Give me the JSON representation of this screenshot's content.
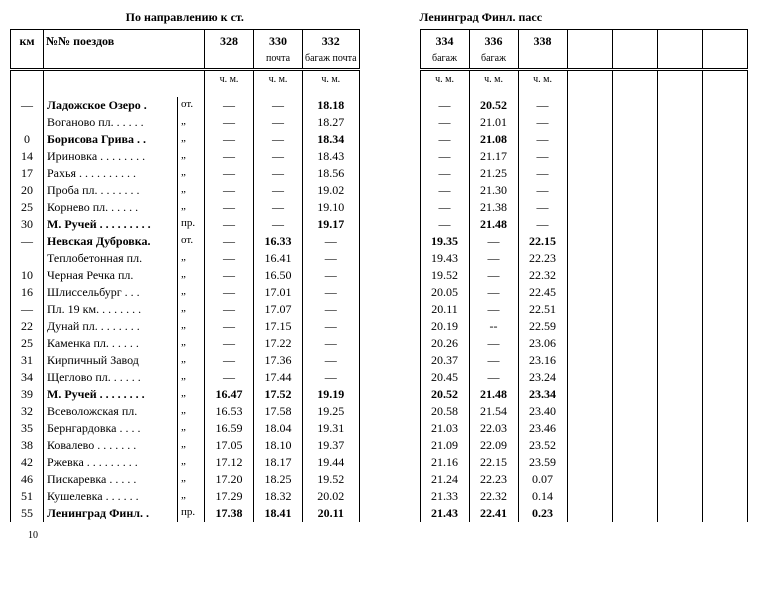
{
  "page_number": "10",
  "left": {
    "title": "По направлению к ст.",
    "columns": {
      "km": "км",
      "trains": "№№ поездов",
      "c1_num": "328",
      "c2_num": "330",
      "c2_sub": "почта",
      "c3_num": "332",
      "c3_sub": "багаж почта",
      "chm": "ч. м."
    }
  },
  "right": {
    "title": "Ленинград Финл. пасс",
    "columns": {
      "c4_num": "334",
      "c4_sub": "багаж",
      "c5_num": "336",
      "c5_sub": "багаж",
      "c6_num": "338",
      "chm": "ч. м."
    }
  },
  "rows": [
    {
      "km": "—",
      "station": "Ладожское Озеро .",
      "mark": "от.",
      "c1": "—",
      "c2": "—",
      "c3": "18.18",
      "c4": "—",
      "c5": "20.52",
      "c6": "—",
      "bold_station": true,
      "bold_c3": true,
      "bold_c5": true
    },
    {
      "km": "",
      "station": "Воганово пл. . . . . .",
      "mark": "„",
      "c1": "—",
      "c2": "—",
      "c3": "18.27",
      "c4": "—",
      "c5": "21.01",
      "c6": "—"
    },
    {
      "km": "0",
      "station": "Борисова Грива . .",
      "mark": "„",
      "c1": "—",
      "c2": "—",
      "c3": "18.34",
      "c4": "—",
      "c5": "21.08",
      "c6": "—",
      "bold_station": true,
      "bold_c3": true,
      "bold_c5": true
    },
    {
      "km": "14",
      "station": "Ириновка . . . . . . . .",
      "mark": "„",
      "c1": "—",
      "c2": "—",
      "c3": "18.43",
      "c4": "—",
      "c5": "21.17",
      "c6": "—"
    },
    {
      "km": "17",
      "station": "Рахья . . . . . . . . . .",
      "mark": "„",
      "c1": "—",
      "c2": "—",
      "c3": "18.56",
      "c4": "—",
      "c5": "21.25",
      "c6": "—"
    },
    {
      "km": "20",
      "station": "Проба пл. . . . . . . .",
      "mark": "„",
      "c1": "—",
      "c2": "—",
      "c3": "19.02",
      "c4": "—",
      "c5": "21.30",
      "c6": "—"
    },
    {
      "km": "25",
      "station": "Корнево пл. . . . . .",
      "mark": "„",
      "c1": "—",
      "c2": "—",
      "c3": "19.10",
      "c4": "—",
      "c5": "21.38",
      "c6": "—"
    },
    {
      "km": "30",
      "station": "М. Ручей . . . . . . . . .",
      "mark": "пр.",
      "c1": "—",
      "c2": "—",
      "c3": "19.17",
      "c4": "—",
      "c5": "21.48",
      "c6": "—",
      "bold_station": true,
      "bold_c3": true,
      "bold_c5": true
    },
    {
      "km": "—",
      "station": "Невская Дубровка.",
      "mark": "от.",
      "c1": "—",
      "c2": "16.33",
      "c3": "—",
      "c4": "19.35",
      "c5": "—",
      "c6": "22.15",
      "bold_station": true,
      "bold_c2": true,
      "bold_c4": true,
      "bold_c6": true
    },
    {
      "km": "",
      "station": "Теплобетонная пл.",
      "mark": "„",
      "c1": "—",
      "c2": "16.41",
      "c3": "—",
      "c4": "19.43",
      "c5": "—",
      "c6": "22.23"
    },
    {
      "km": "10",
      "station": "Черная Речка пл.",
      "mark": "„",
      "c1": "—",
      "c2": "16.50",
      "c3": "—",
      "c4": "19.52",
      "c5": "—",
      "c6": "22.32"
    },
    {
      "km": "16",
      "station": "Шлиссельбург . . .",
      "mark": "„",
      "c1": "—",
      "c2": "17.01",
      "c3": "—",
      "c4": "20.05",
      "c5": "—",
      "c6": "22.45"
    },
    {
      "km": "—",
      "station": "Пл. 19 км. . . . . . . .",
      "mark": "„",
      "c1": "—",
      "c2": "17.07",
      "c3": "—",
      "c4": "20.11",
      "c5": "—",
      "c6": "22.51"
    },
    {
      "km": "22",
      "station": "Дунай пл. . . . . . . .",
      "mark": "„",
      "c1": "—",
      "c2": "17.15",
      "c3": "—",
      "c4": "20.19",
      "c5": "--",
      "c6": "22.59"
    },
    {
      "km": "25",
      "station": "Каменка пл. . . . . .",
      "mark": "„",
      "c1": "—",
      "c2": "17.22",
      "c3": "—",
      "c4": "20.26",
      "c5": "—",
      "c6": "23.06"
    },
    {
      "km": "31",
      "station": "Кирпичный Завод",
      "mark": "„",
      "c1": "—",
      "c2": "17.36",
      "c3": "—",
      "c4": "20.37",
      "c5": "—",
      "c6": "23.16"
    },
    {
      "km": "34",
      "station": "Щеглово пл. . . . . .",
      "mark": "„",
      "c1": "—",
      "c2": "17.44",
      "c3": "—",
      "c4": "20.45",
      "c5": "—",
      "c6": "23.24"
    },
    {
      "km": "39",
      "station": "М. Ручей . . . . . . . .",
      "mark": "„",
      "c1": "16.47",
      "c2": "17.52",
      "c3": "19.19",
      "c4": "20.52",
      "c5": "21.48",
      "c6": "23.34",
      "bold_station": true,
      "bold_c1": true,
      "bold_c2": true,
      "bold_c3": true,
      "bold_c4": true,
      "bold_c5": true,
      "bold_c6": true
    },
    {
      "km": "32",
      "station": "Всеволожская пл.",
      "mark": "„",
      "c1": "16.53",
      "c2": "17.58",
      "c3": "19.25",
      "c4": "20.58",
      "c5": "21.54",
      "c6": "23.40"
    },
    {
      "km": "35",
      "station": "Бернгардовка . . . .",
      "mark": "„",
      "c1": "16.59",
      "c2": "18.04",
      "c3": "19.31",
      "c4": "21.03",
      "c5": "22.03",
      "c6": "23.46"
    },
    {
      "km": "38",
      "station": "Ковалево . . . . . . .",
      "mark": "„",
      "c1": "17.05",
      "c2": "18.10",
      "c3": "19.37",
      "c4": "21.09",
      "c5": "22.09",
      "c6": "23.52"
    },
    {
      "km": "42",
      "station": "Ржевка . . . . . . . . .",
      "mark": "„",
      "c1": "17.12",
      "c2": "18.17",
      "c3": "19.44",
      "c4": "21.16",
      "c5": "22.15",
      "c6": "23.59"
    },
    {
      "km": "46",
      "station": "Пискаревка . . . . .",
      "mark": "„",
      "c1": "17.20",
      "c2": "18.25",
      "c3": "19.52",
      "c4": "21.24",
      "c5": "22.23",
      "c6": "0.07"
    },
    {
      "km": "51",
      "station": "Кушелевка . . . . . .",
      "mark": "„",
      "c1": "17.29",
      "c2": "18.32",
      "c3": "20.02",
      "c4": "21.33",
      "c5": "22.32",
      "c6": "0.14"
    },
    {
      "km": "55",
      "station": "Ленинград Финл. .",
      "mark": "пр.",
      "c1": "17.38",
      "c2": "18.41",
      "c3": "20.11",
      "c4": "21.43",
      "c5": "22.41",
      "c6": "0.23",
      "bold_station": true,
      "bold_c1": true,
      "bold_c2": true,
      "bold_c3": true,
      "bold_c4": true,
      "bold_c5": true,
      "bold_c6": true
    }
  ]
}
